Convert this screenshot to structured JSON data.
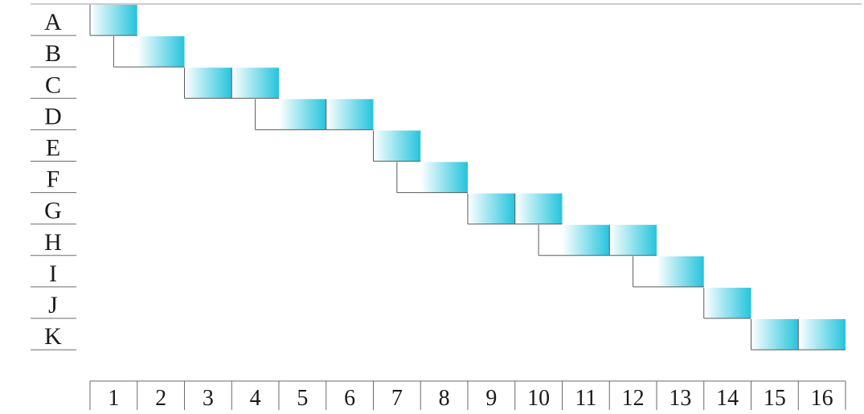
{
  "colors": {
    "bar_end": "#25c4dc",
    "bar_start": "#ffffff",
    "divider": "#5a5a5a",
    "axis": "#6a6a6a",
    "text": "#1a1a1a"
  },
  "chart_data": {
    "type": "bar",
    "orientation": "horizontal",
    "grid": false,
    "legend": "none",
    "rows": [
      "A",
      "B",
      "C",
      "D",
      "E",
      "F",
      "G",
      "H",
      "I",
      "J",
      "K"
    ],
    "x_ticks": [
      "1",
      "2",
      "3",
      "4",
      "5",
      "6",
      "7",
      "8",
      "9",
      "10",
      "11",
      "12",
      "13",
      "14",
      "15",
      "16"
    ],
    "xlim": [
      1,
      16
    ],
    "tasks": [
      {
        "label": "A",
        "start": 1,
        "end": 1,
        "divisions": [
          1
        ]
      },
      {
        "label": "B",
        "start": 1.5,
        "end": 2,
        "divisions": [
          2
        ]
      },
      {
        "label": "C",
        "start": 3,
        "end": 4,
        "divisions": [
          3,
          4
        ]
      },
      {
        "label": "D",
        "start": 4.5,
        "end": 6,
        "divisions": [
          5,
          6
        ]
      },
      {
        "label": "E",
        "start": 7,
        "end": 7,
        "divisions": [
          7
        ]
      },
      {
        "label": "F",
        "start": 7.5,
        "end": 8,
        "divisions": [
          8
        ]
      },
      {
        "label": "G",
        "start": 9,
        "end": 10,
        "divisions": [
          9,
          10
        ]
      },
      {
        "label": "H",
        "start": 10.5,
        "end": 12,
        "divisions": [
          11,
          12
        ]
      },
      {
        "label": "I",
        "start": 12.5,
        "end": 13,
        "divisions": [
          13
        ]
      },
      {
        "label": "J",
        "start": 14,
        "end": 14,
        "divisions": [
          14
        ]
      },
      {
        "label": "K",
        "start": 15,
        "end": 16,
        "divisions": [
          15,
          16
        ]
      }
    ]
  }
}
